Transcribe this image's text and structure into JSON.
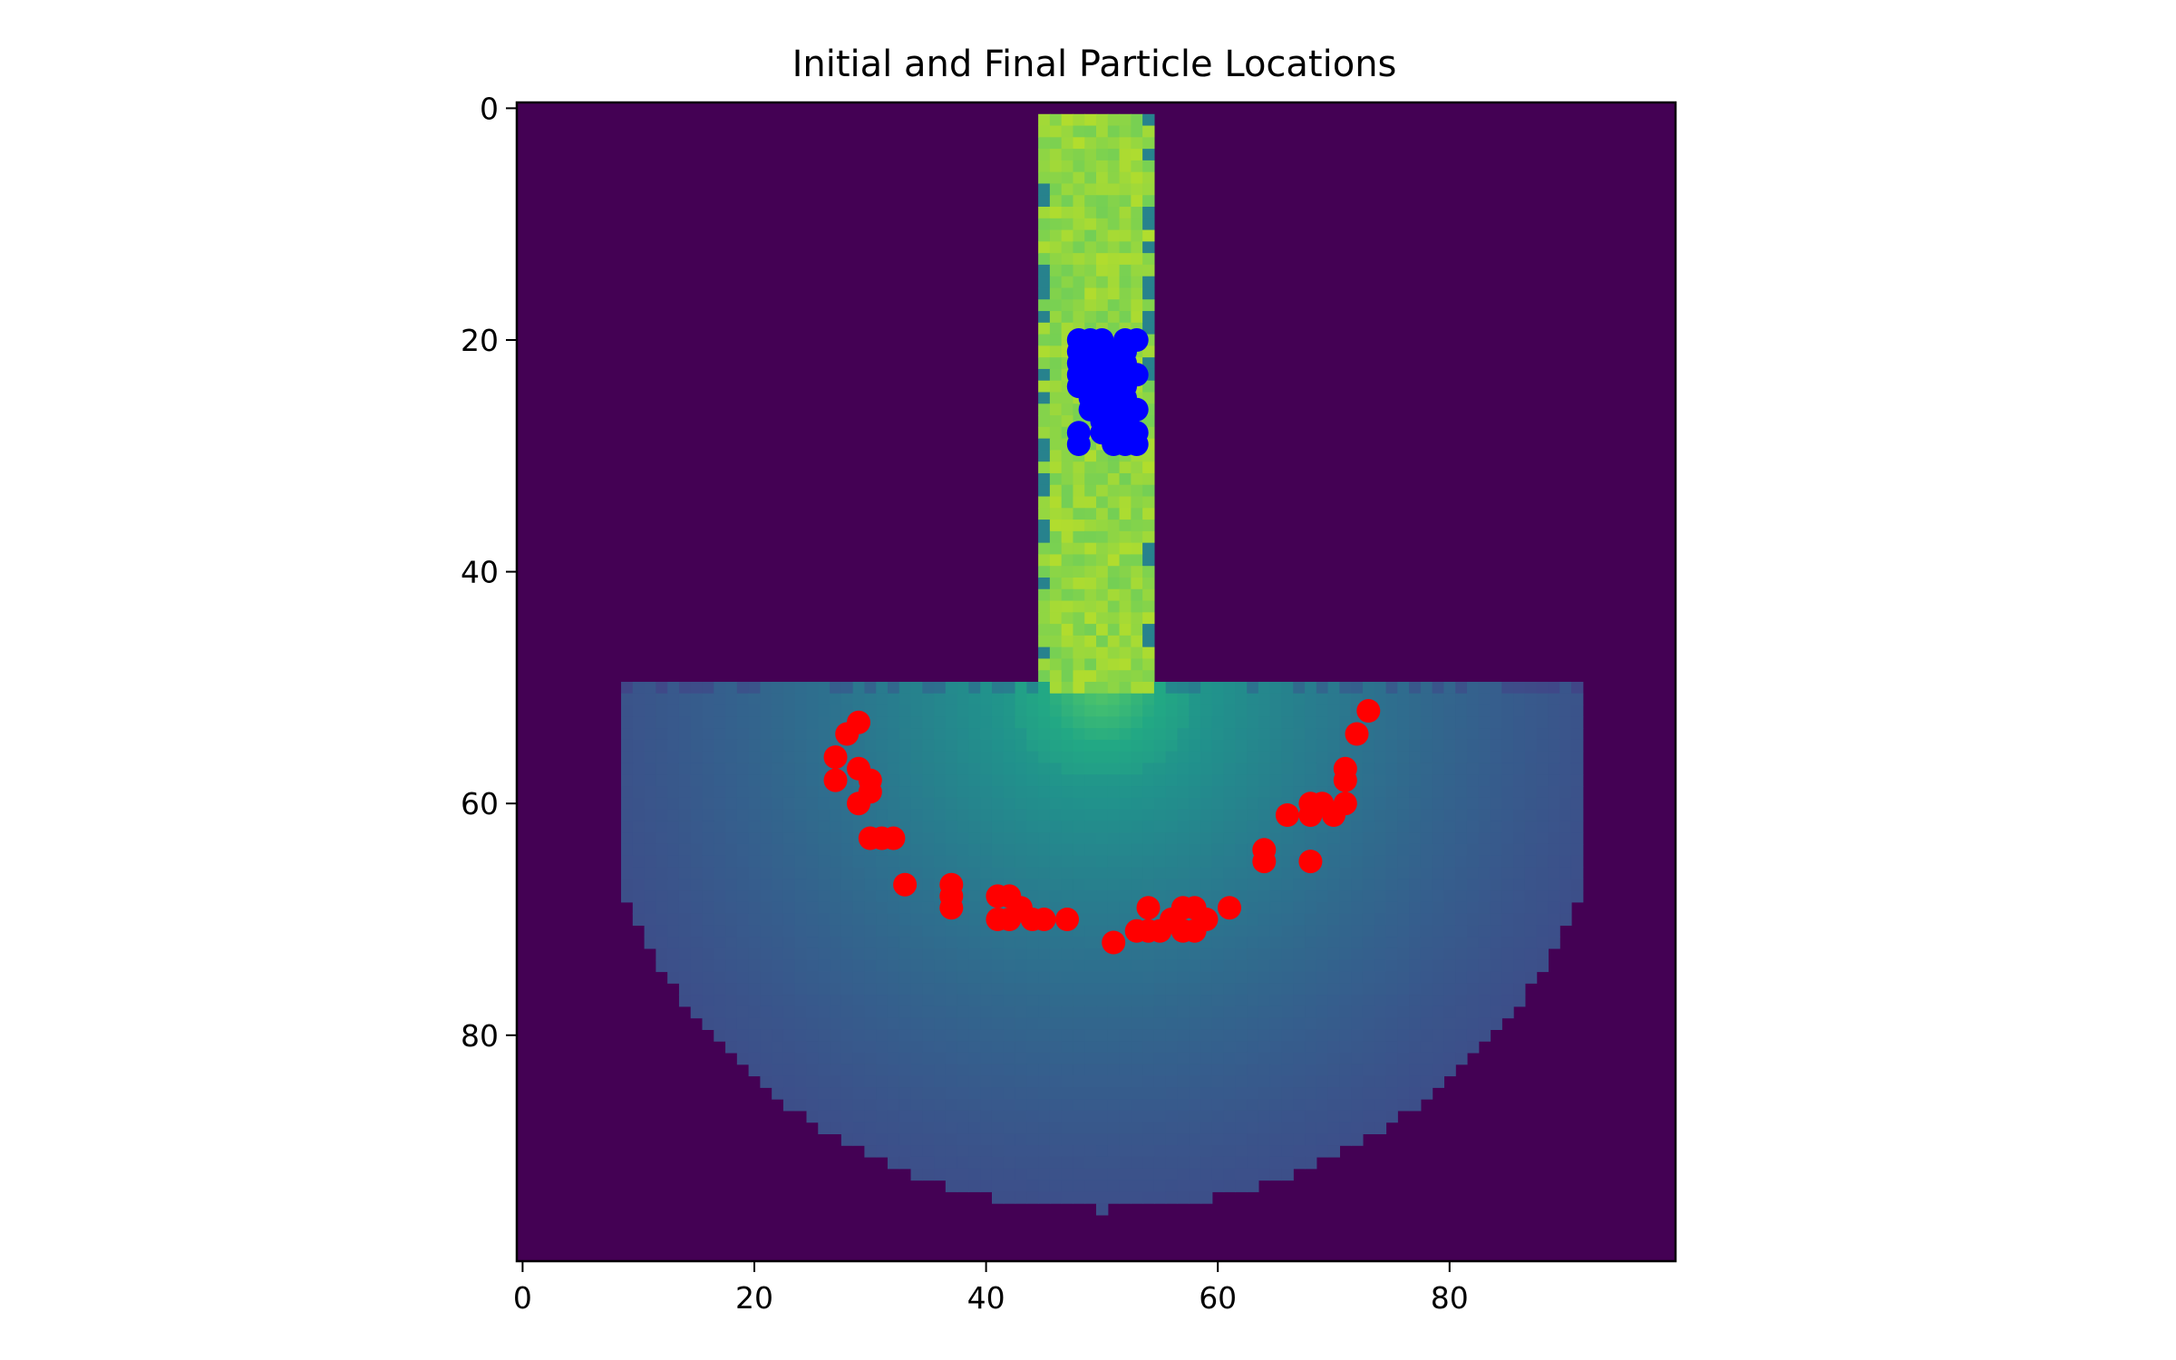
{
  "chart_data": {
    "type": "scatter",
    "title": "Initial and Final Particle Locations",
    "xlabel": "",
    "ylabel": "",
    "xlim": [
      -0.5,
      99.5
    ],
    "ylim": [
      99.5,
      -0.5
    ],
    "y_axis_inverted": true,
    "grid": false,
    "x_ticks": [
      0,
      20,
      40,
      60,
      80
    ],
    "y_ticks": [
      0,
      20,
      40,
      60,
      80
    ],
    "background": {
      "type": "heatmap",
      "colormap": "viridis",
      "description_values": {
        "channel_cols": [
          45,
          54
        ],
        "channel_rows": [
          1,
          50
        ],
        "channel_level": 0.95,
        "bowl_top_row": 50,
        "bowl_center_col": 50,
        "bowl_radius": 45
      }
    },
    "series": [
      {
        "color": "#0000ff",
        "points": [
          [
            48,
            20
          ],
          [
            49,
            20
          ],
          [
            50,
            20
          ],
          [
            52,
            20
          ],
          [
            53,
            20
          ],
          [
            48,
            21
          ],
          [
            49,
            21
          ],
          [
            51,
            21
          ],
          [
            52,
            21
          ],
          [
            48,
            22
          ],
          [
            49,
            22
          ],
          [
            50,
            22
          ],
          [
            51,
            22
          ],
          [
            52,
            22
          ],
          [
            48,
            23
          ],
          [
            49,
            23
          ],
          [
            50,
            23
          ],
          [
            51,
            23
          ],
          [
            53,
            23
          ],
          [
            48,
            24
          ],
          [
            49,
            24
          ],
          [
            51,
            24
          ],
          [
            52,
            24
          ],
          [
            49,
            25
          ],
          [
            50,
            25
          ],
          [
            51,
            25
          ],
          [
            52,
            25
          ],
          [
            49,
            26
          ],
          [
            50,
            26
          ],
          [
            51,
            26
          ],
          [
            53,
            26
          ],
          [
            50,
            27
          ],
          [
            51,
            27
          ],
          [
            52,
            27
          ],
          [
            48,
            28
          ],
          [
            50,
            28
          ],
          [
            51,
            28
          ],
          [
            53,
            28
          ],
          [
            48,
            29
          ],
          [
            51,
            29
          ],
          [
            52,
            29
          ],
          [
            53,
            29
          ]
        ]
      },
      {
        "color": "#ff0000",
        "points": [
          [
            29,
            53
          ],
          [
            28,
            54
          ],
          [
            27,
            56
          ],
          [
            27,
            58
          ],
          [
            29,
            57
          ],
          [
            30,
            58
          ],
          [
            30,
            59
          ],
          [
            29,
            60
          ],
          [
            30,
            63
          ],
          [
            31,
            63
          ],
          [
            32,
            63
          ],
          [
            33,
            67
          ],
          [
            37,
            67
          ],
          [
            37,
            68
          ],
          [
            37,
            69
          ],
          [
            41,
            68
          ],
          [
            42,
            68
          ],
          [
            41,
            70
          ],
          [
            42,
            70
          ],
          [
            43,
            69
          ],
          [
            44,
            70
          ],
          [
            45,
            70
          ],
          [
            47,
            70
          ],
          [
            51,
            72
          ],
          [
            53,
            71
          ],
          [
            54,
            71
          ],
          [
            54,
            69
          ],
          [
            55,
            71
          ],
          [
            56,
            70
          ],
          [
            57,
            69
          ],
          [
            57,
            71
          ],
          [
            58,
            69
          ],
          [
            58,
            71
          ],
          [
            59,
            70
          ],
          [
            61,
            69
          ],
          [
            64,
            64
          ],
          [
            64,
            65
          ],
          [
            66,
            61
          ],
          [
            68,
            60
          ],
          [
            68,
            61
          ],
          [
            68,
            65
          ],
          [
            69,
            60
          ],
          [
            70,
            61
          ],
          [
            71,
            60
          ],
          [
            71,
            57
          ],
          [
            71,
            58
          ],
          [
            72,
            54
          ],
          [
            73,
            52
          ]
        ]
      }
    ]
  }
}
